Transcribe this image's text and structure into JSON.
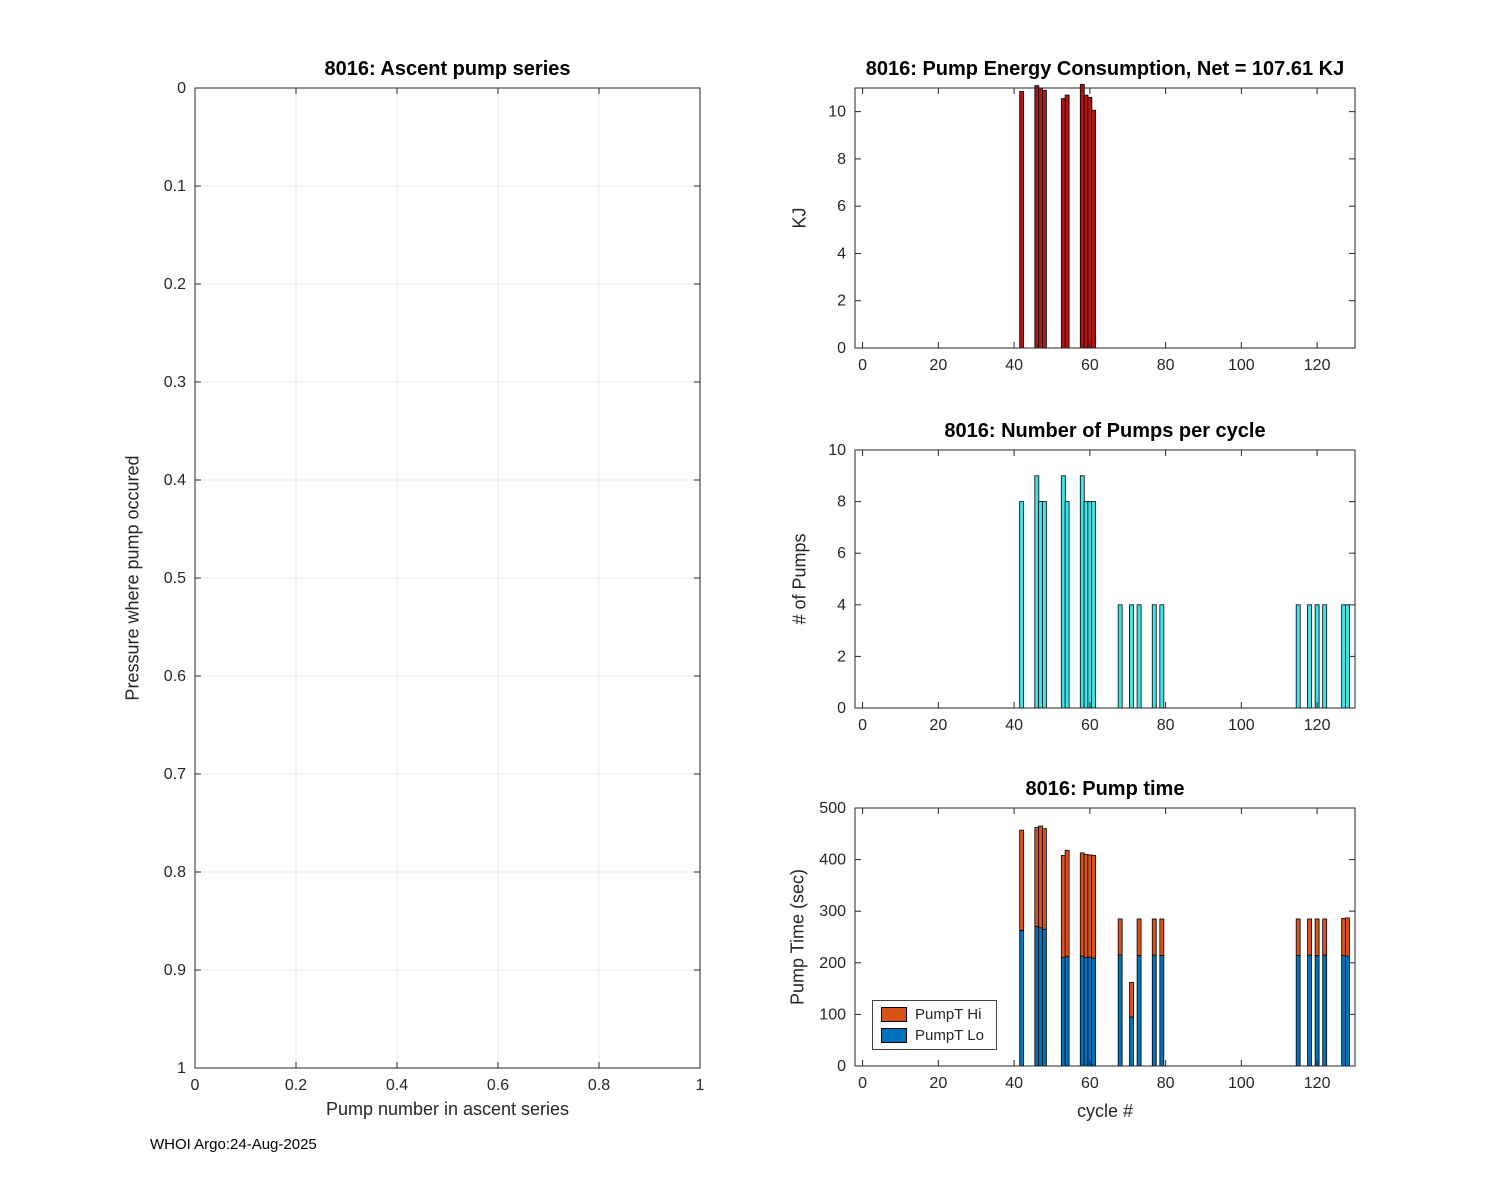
{
  "figure": {
    "footer": "WHOI Argo:24-Aug-2025",
    "colors": {
      "axis": "#262626",
      "grid": "#ebebeb",
      "bar_edge": "#000000"
    }
  },
  "chart_data": [
    {
      "id": "ascent-pump-series",
      "type": "scatter",
      "title": "8016: Ascent pump series",
      "xlabel": "Pump number in ascent series",
      "ylabel": "Pressure where pump occured",
      "xlim": [
        0,
        1
      ],
      "ylim": [
        0,
        1
      ],
      "y_reversed": true,
      "xticks": [
        0,
        0.2,
        0.4,
        0.6,
        0.8,
        1
      ],
      "yticks": [
        0,
        0.1,
        0.2,
        0.3,
        0.4,
        0.5,
        0.6,
        0.7,
        0.8,
        0.9,
        1
      ],
      "grid": true,
      "points": []
    },
    {
      "id": "pump-energy-consumption",
      "type": "bar",
      "title": "8016: Pump Energy Consumption,  Net = 107.61 KJ",
      "xlabel": "",
      "ylabel": "KJ",
      "net_kj": 107.61,
      "xlim": [
        -2,
        130
      ],
      "ylim": [
        0,
        11
      ],
      "xticks": [
        0,
        20,
        40,
        60,
        80,
        100,
        120
      ],
      "yticks": [
        0,
        2,
        4,
        6,
        8,
        10
      ],
      "grid": false,
      "bar_color": "#b31414",
      "x": [
        42,
        46,
        47,
        48,
        53,
        54,
        58,
        59,
        60,
        61
      ],
      "values": [
        10.85,
        11.1,
        11.0,
        10.9,
        10.55,
        10.7,
        11.15,
        10.7,
        10.6,
        10.06
      ]
    },
    {
      "id": "number-of-pumps-per-cycle",
      "type": "bar",
      "title": "8016: Number of Pumps per cycle",
      "xlabel": "",
      "ylabel": "# of Pumps",
      "xlim": [
        -2,
        130
      ],
      "ylim": [
        0,
        10
      ],
      "xticks": [
        0,
        20,
        40,
        60,
        80,
        100,
        120
      ],
      "yticks": [
        0,
        2,
        4,
        6,
        8,
        10
      ],
      "grid": false,
      "bar_color": "#3fe3e8",
      "x": [
        42,
        46,
        47,
        48,
        53,
        54,
        58,
        59,
        60,
        61,
        68,
        71,
        73,
        77,
        79,
        115,
        118,
        120,
        122,
        127,
        128
      ],
      "values": [
        8,
        9,
        8,
        8,
        9,
        8,
        9,
        8,
        8,
        8,
        4,
        4,
        4,
        4,
        4,
        4,
        4,
        4,
        4,
        4,
        4
      ]
    },
    {
      "id": "pump-time",
      "type": "bar-stacked",
      "title": "8016: Pump time",
      "xlabel": "cycle #",
      "ylabel": "Pump Time (sec)",
      "xlim": [
        -2,
        130
      ],
      "ylim": [
        0,
        500
      ],
      "xticks": [
        0,
        20,
        40,
        60,
        80,
        100,
        120
      ],
      "yticks": [
        0,
        100,
        200,
        300,
        400,
        500
      ],
      "grid": false,
      "x": [
        42,
        46,
        47,
        48,
        53,
        54,
        58,
        59,
        60,
        61,
        68,
        71,
        73,
        77,
        79,
        115,
        118,
        120,
        122,
        127,
        128
      ],
      "series": [
        {
          "name": "PumpT Lo",
          "color": "#0072bd",
          "values": [
            263,
            270,
            268,
            265,
            210,
            212,
            213,
            210,
            211,
            209,
            215,
            95,
            214,
            215,
            214,
            214,
            215,
            214,
            215,
            214,
            213
          ]
        },
        {
          "name": "PumpT Hi",
          "color": "#d95319",
          "values": [
            194,
            192,
            197,
            195,
            198,
            206,
            200,
            200,
            198,
            199,
            70,
            67,
            71,
            70,
            71,
            71,
            70,
            71,
            70,
            72,
            74
          ]
        }
      ],
      "legend": {
        "position": "bottom-left",
        "entries": [
          {
            "label": "PumpT Hi",
            "color": "#d95319"
          },
          {
            "label": "PumpT Lo",
            "color": "#0072bd"
          }
        ]
      }
    }
  ]
}
